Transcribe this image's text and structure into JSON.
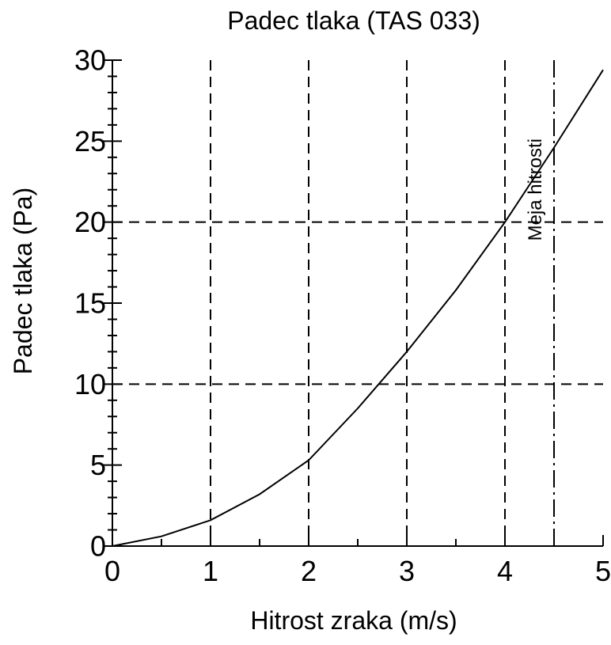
{
  "chart_data": {
    "type": "line",
    "title": "Padec tlaka (TAS 033)",
    "xlabel": "Hitrost zraka (m/s)",
    "ylabel": "Padec tlaka (Pa)",
    "xlim": [
      0,
      5
    ],
    "ylim": [
      0,
      30
    ],
    "x_ticks": [
      0,
      1,
      2,
      3,
      4,
      5
    ],
    "y_ticks": [
      0,
      5,
      10,
      15,
      20,
      25,
      30
    ],
    "x_grid": [
      1,
      2,
      3,
      4
    ],
    "y_grid": [
      10,
      20
    ],
    "grid": true,
    "grid_style": "dashed",
    "series": [
      {
        "x": [
          0,
          0.5,
          1.0,
          1.5,
          2.0,
          2.5,
          3.0,
          3.5,
          4.0,
          4.5,
          5.0
        ],
        "y": [
          0,
          0.6,
          1.6,
          3.2,
          5.3,
          8.5,
          12.0,
          15.8,
          20.0,
          24.6,
          29.4
        ]
      }
    ],
    "annotations": [
      {
        "type": "vertical-line",
        "x": 4.5,
        "style": "dash-dot",
        "label": "Meja hitrosti"
      }
    ]
  }
}
